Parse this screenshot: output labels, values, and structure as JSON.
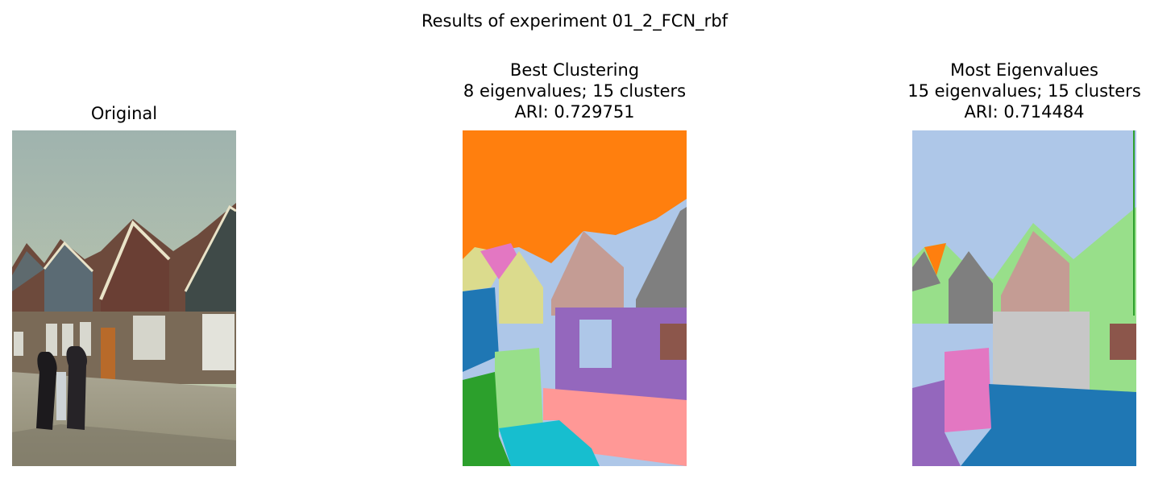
{
  "figure": {
    "suptitle": "Results of experiment 01_2_FCN_rbf"
  },
  "panels": [
    {
      "id": "original",
      "title_lines": [
        "Original"
      ],
      "image": "photo of a street with gabled brick houses and two women in dark clothing walking"
    },
    {
      "id": "best-clustering",
      "title_lines": [
        "Best Clustering",
        "8 eigenvalues; 15 clusters",
        "ARI: 0.729751"
      ],
      "image": "segmentation map"
    },
    {
      "id": "most-eigenvalues",
      "title_lines": [
        "Most Eigenvalues",
        "15 eigenvalues; 15 clusters",
        "ARI: 0.714484"
      ],
      "image": "segmentation map"
    }
  ],
  "colors": {
    "orange": "#ff7f0e",
    "light_blue": "#aec7e8",
    "blue": "#1f77b4",
    "pink": "#e377c2",
    "khaki": "#dbdb8d",
    "rosy": "#c49c94",
    "purple": "#9467bd",
    "light_green": "#98df8a",
    "green": "#2ca02c",
    "cyan": "#17becf",
    "salmon": "#ff9896",
    "gray": "#7f7f7f",
    "light_gray": "#c7c7c7",
    "brown": "#8c564b"
  }
}
